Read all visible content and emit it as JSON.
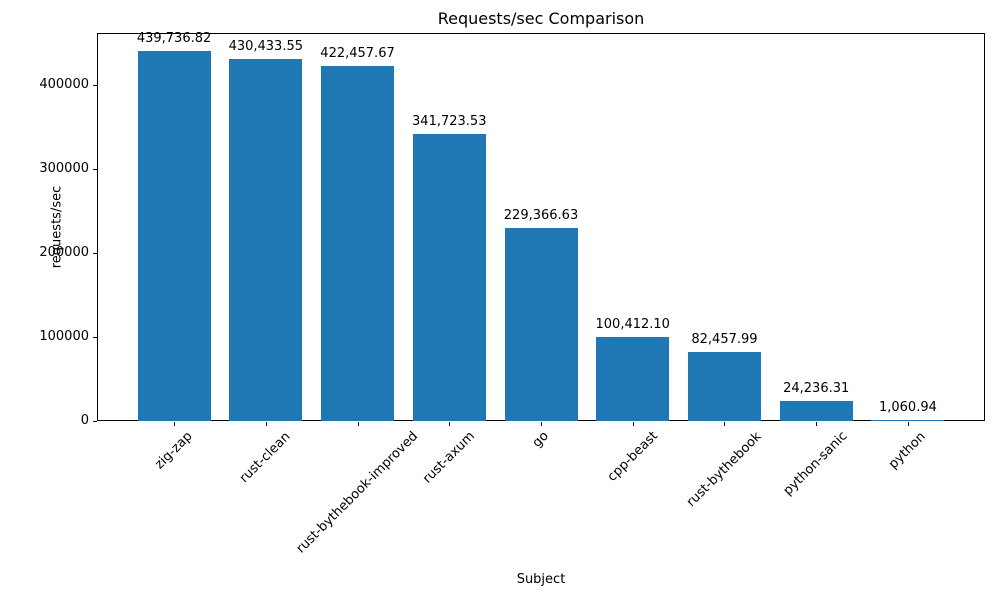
{
  "chart_data": {
    "type": "bar",
    "title": "Requests/sec Comparison",
    "xlabel": "Subject",
    "ylabel": "requests/sec",
    "categories": [
      "zig-zap",
      "rust-clean",
      "rust-bythebook-improved",
      "rust-axum",
      "go",
      "cpp-beast",
      "rust-bythebook",
      "python-sanic",
      "python"
    ],
    "values": [
      439736.82,
      430433.55,
      422457.67,
      341723.53,
      229366.63,
      100412.1,
      82457.99,
      24236.31,
      1060.94
    ],
    "value_labels": [
      "439,736.82",
      "430,433.55",
      "422,457.67",
      "341,723.53",
      "229,366.63",
      "100,412.10",
      "82,457.99",
      "24,236.31",
      "1,060.94"
    ],
    "bar_color": "#1f77b4",
    "ylim": [
      0,
      461723.66
    ],
    "yticks": [
      0,
      100000,
      200000,
      300000,
      400000
    ],
    "grid": "off",
    "legend": "none",
    "x_tick_rotation_deg": 45
  }
}
